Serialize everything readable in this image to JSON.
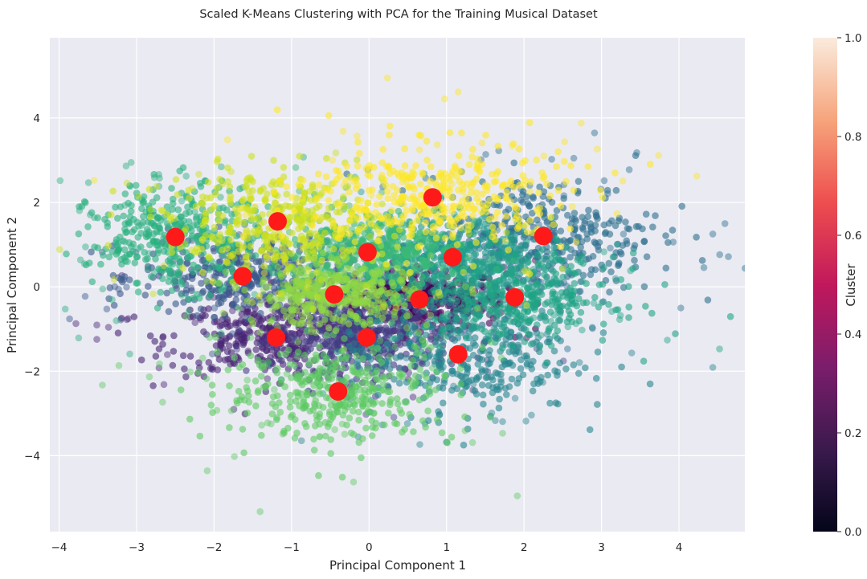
{
  "chart_data": {
    "type": "scatter",
    "title": "Scaled K-Means Clustering with PCA for the Training Musical Dataset",
    "xlabel": "Principal Component 1",
    "ylabel": "Principal Component 2",
    "xlim": [
      -4.12,
      4.85
    ],
    "ylim": [
      -5.8,
      5.9
    ],
    "xticks": [
      -4,
      -3,
      -2,
      -1,
      0,
      1,
      2,
      3,
      4
    ],
    "yticks": [
      -4,
      -2,
      0,
      2,
      4
    ],
    "grid": true,
    "background": "#eaeaf2",
    "colorbar": {
      "label": "Cluster",
      "min": 0.0,
      "max": 1.0,
      "ticks": [
        "0.0",
        "0.2",
        "0.4",
        "0.6",
        "0.8",
        "1.0"
      ],
      "colormap": "rocket",
      "stops": [
        "#03051a",
        "#3a1a4d",
        "#7b1d6b",
        "#c1185c",
        "#ee4e4e",
        "#f6a47b",
        "#faebdd"
      ]
    },
    "clusters": [
      {
        "center": [
          0.65,
          -0.3
        ],
        "spread": [
          0.55,
          0.35
        ],
        "color": "#440154"
      },
      {
        "center": [
          -1.2,
          -1.2
        ],
        "spread": [
          0.7,
          0.45
        ],
        "color": "#482475"
      },
      {
        "center": [
          -0.03,
          -1.2
        ],
        "spread": [
          0.55,
          0.45
        ],
        "color": "#433d84"
      },
      {
        "center": [
          -1.63,
          0.25
        ],
        "spread": [
          0.65,
          0.45
        ],
        "color": "#38598c"
      },
      {
        "center": [
          2.25,
          1.2
        ],
        "spread": [
          0.75,
          0.7
        ],
        "color": "#2d6f8e"
      },
      {
        "center": [
          1.15,
          -1.6
        ],
        "spread": [
          0.75,
          0.7
        ],
        "color": "#25858e"
      },
      {
        "center": [
          1.08,
          0.7
        ],
        "spread": [
          0.55,
          0.45
        ],
        "color": "#1e9b8a"
      },
      {
        "center": [
          1.88,
          -0.25
        ],
        "spread": [
          0.65,
          0.5
        ],
        "color": "#20a386"
      },
      {
        "center": [
          -2.5,
          1.18
        ],
        "spread": [
          0.55,
          0.6
        ],
        "color": "#2ab07f"
      },
      {
        "center": [
          -0.02,
          0.82
        ],
        "spread": [
          0.55,
          0.45
        ],
        "color": "#3ab977"
      },
      {
        "center": [
          -0.4,
          -2.48
        ],
        "spread": [
          0.75,
          0.6
        ],
        "color": "#5ec962"
      },
      {
        "center": [
          -0.45,
          -0.18
        ],
        "spread": [
          0.5,
          0.35
        ],
        "color": "#8fd744"
      },
      {
        "center": [
          -1.18,
          1.55
        ],
        "spread": [
          0.7,
          0.6
        ],
        "color": "#cde11d"
      },
      {
        "center": [
          0.82,
          2.12
        ],
        "spread": [
          0.85,
          0.65
        ],
        "color": "#fde725"
      }
    ],
    "centroids": {
      "color": "#ff1a1a",
      "points": [
        [
          0.82,
          2.12
        ],
        [
          -1.18,
          1.55
        ],
        [
          -2.5,
          1.18
        ],
        [
          2.25,
          1.2
        ],
        [
          -0.02,
          0.82
        ],
        [
          1.08,
          0.7
        ],
        [
          -1.63,
          0.25
        ],
        [
          -0.45,
          -0.18
        ],
        [
          0.65,
          -0.3
        ],
        [
          1.88,
          -0.25
        ],
        [
          -1.2,
          -1.2
        ],
        [
          -0.03,
          -1.2
        ],
        [
          1.15,
          -1.6
        ],
        [
          -0.4,
          -2.48
        ]
      ]
    }
  }
}
